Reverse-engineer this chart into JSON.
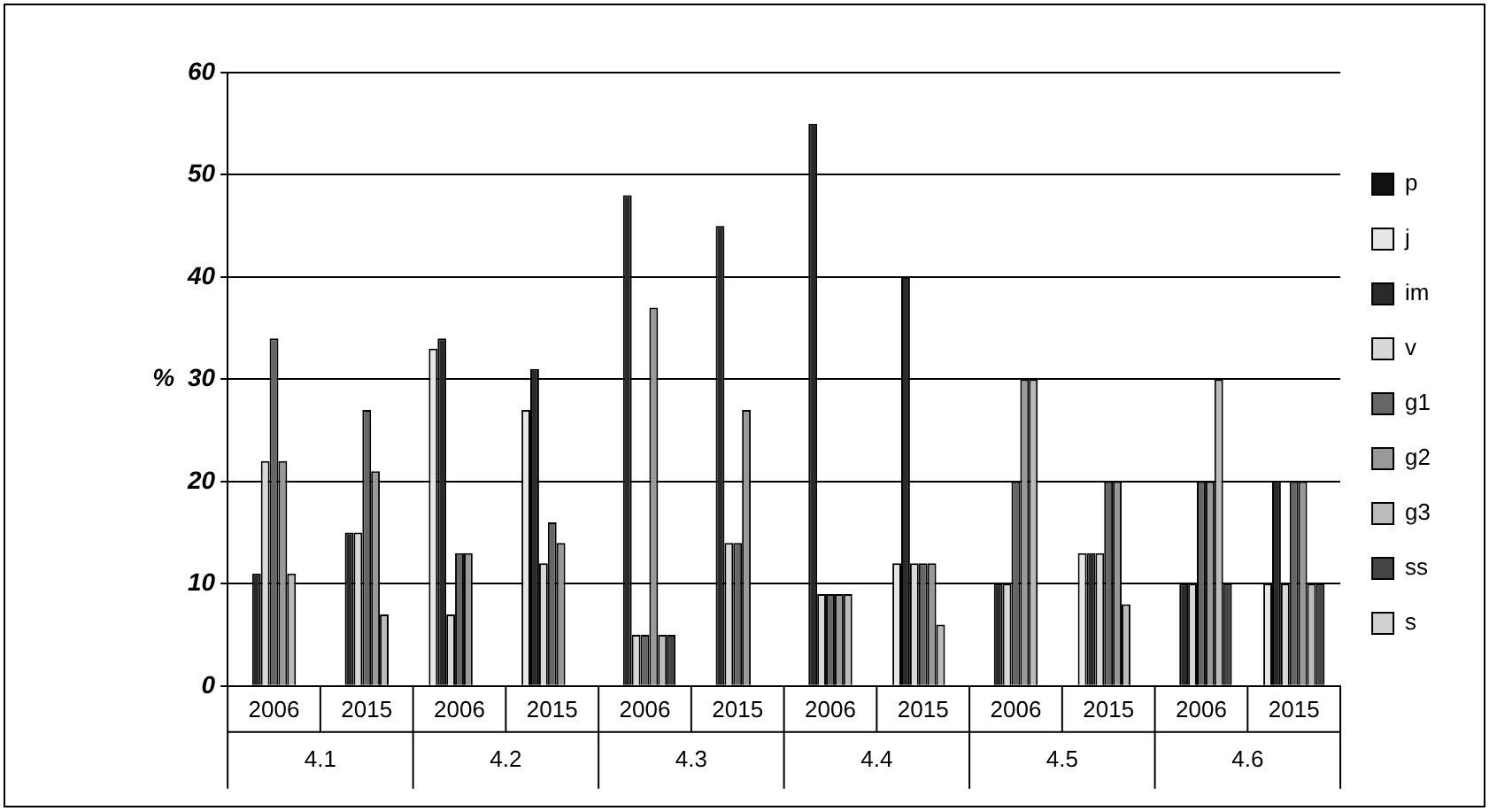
{
  "chart_data": {
    "type": "bar",
    "ylabel": "%",
    "categories": [
      "2006",
      "2015",
      "2006",
      "2015",
      "2006",
      "2015",
      "2006",
      "2015",
      "2006",
      "2015",
      "2006",
      "2015"
    ],
    "annotations": [
      "4.1",
      "4.2",
      "4.3",
      "4.4",
      "4.5",
      "4.6"
    ],
    "series": [
      {
        "name": "p",
        "color": "#111111",
        "values": [
          0,
          0,
          0,
          0,
          0,
          0,
          0,
          0,
          0,
          0,
          0,
          0
        ]
      },
      {
        "name": "j",
        "color": "#e6e6e6",
        "values": [
          0,
          0,
          33,
          27,
          0,
          0,
          0,
          12,
          0,
          13,
          0,
          10
        ]
      },
      {
        "name": "im",
        "color": "#2a2a2a",
        "values": [
          11,
          15,
          34,
          31,
          48,
          45,
          55,
          40,
          10,
          13,
          10,
          20
        ]
      },
      {
        "name": "v",
        "color": "#d8d8d8",
        "values": [
          22,
          15,
          7,
          12,
          5,
          14,
          9,
          12,
          10,
          13,
          10,
          10
        ]
      },
      {
        "name": "g1",
        "color": "#666666",
        "values": [
          34,
          27,
          13,
          16,
          5,
          14,
          9,
          12,
          20,
          20,
          20,
          20
        ]
      },
      {
        "name": "g2",
        "color": "#999999",
        "values": [
          22,
          21,
          13,
          14,
          37,
          27,
          9,
          12,
          30,
          20,
          20,
          20
        ]
      },
      {
        "name": "g3",
        "color": "#bbbbbb",
        "values": [
          11,
          7,
          0,
          0,
          5,
          0,
          9,
          6,
          30,
          8,
          30,
          10
        ]
      },
      {
        "name": "ss",
        "color": "#444444",
        "values": [
          0,
          0,
          0,
          0,
          5,
          0,
          0,
          0,
          0,
          0,
          10,
          10
        ]
      },
      {
        "name": "s",
        "color": "#d0d0d0",
        "values": [
          0,
          0,
          0,
          0,
          0,
          0,
          0,
          0,
          0,
          0,
          0,
          0
        ]
      }
    ],
    "ylim": [
      0,
      60
    ],
    "yticks": [
      0,
      10,
      20,
      30,
      40,
      50,
      60
    ],
    "grid": "y",
    "legend": "right"
  }
}
